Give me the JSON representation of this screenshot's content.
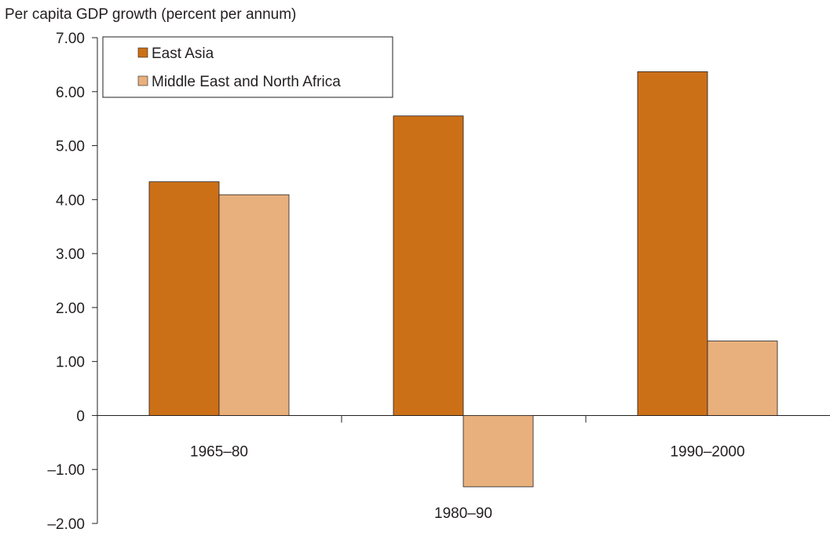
{
  "chart_data": {
    "type": "bar",
    "title": "Per capita GDP growth (percent per annum)",
    "xlabel": "",
    "ylabel": "",
    "categories": [
      "1965–80",
      "1980–90",
      "1990–2000"
    ],
    "series": [
      {
        "name": "East Asia",
        "values": [
          4.33,
          5.55,
          6.37
        ],
        "color": "#cc7018"
      },
      {
        "name": "Middle East and North Africa",
        "values": [
          4.09,
          -1.32,
          1.38
        ],
        "color": "#e8b07c"
      }
    ],
    "ylim": [
      -2,
      7
    ],
    "yticks": [
      7,
      6,
      5,
      4,
      3,
      2,
      1,
      0,
      -1,
      -2
    ],
    "ytick_labels": [
      "7.00",
      "6.00",
      "5.00",
      "4.00",
      "3.00",
      "2.00",
      "1.00",
      "0",
      "–1.00",
      "–2.00"
    ],
    "grid": false,
    "legend_position": "top-left"
  }
}
